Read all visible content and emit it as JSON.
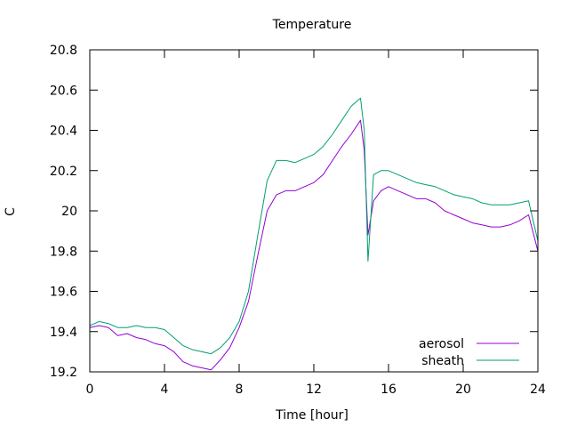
{
  "chart_data": {
    "type": "line",
    "title": "Temperature",
    "xlabel": "Time [hour]",
    "ylabel": "C",
    "xlim": [
      0,
      24
    ],
    "ylim": [
      19.2,
      20.8
    ],
    "xticks": [
      0,
      4,
      8,
      12,
      16,
      20,
      24
    ],
    "xtick_labels": [
      "0",
      "4",
      "8",
      "12",
      "16",
      "20",
      "24"
    ],
    "yticks": [
      19.2,
      19.4,
      19.6,
      19.8,
      20.0,
      20.2,
      20.4,
      20.6,
      20.8
    ],
    "ytick_labels": [
      "19.2",
      "19.4",
      "19.6",
      "19.8",
      "20",
      "20.2",
      "20.4",
      "20.6",
      "20.8"
    ],
    "grid": false,
    "legend_position": "bottom-right",
    "series": [
      {
        "name": "aerosol",
        "color": "#9400d3",
        "x": [
          0,
          0.5,
          1,
          1.5,
          2,
          2.5,
          3,
          3.5,
          4,
          4.5,
          5,
          5.5,
          6,
          6.5,
          7,
          7.5,
          8,
          8.5,
          9,
          9.5,
          10,
          10.5,
          11,
          11.5,
          12,
          12.5,
          13,
          13.5,
          14,
          14.5,
          14.7,
          14.9,
          15.2,
          15.6,
          16,
          16.5,
          17,
          17.5,
          18,
          18.5,
          19,
          19.5,
          20,
          20.5,
          21,
          21.5,
          22,
          22.5,
          23,
          23.5,
          24
        ],
        "y": [
          19.42,
          19.43,
          19.42,
          19.38,
          19.39,
          19.37,
          19.36,
          19.34,
          19.33,
          19.3,
          19.25,
          19.23,
          19.22,
          19.21,
          19.26,
          19.32,
          19.42,
          19.55,
          19.78,
          20.0,
          20.08,
          20.1,
          20.1,
          20.12,
          20.14,
          20.18,
          20.25,
          20.32,
          20.38,
          20.45,
          20.3,
          19.88,
          20.05,
          20.1,
          20.12,
          20.1,
          20.08,
          20.06,
          20.06,
          20.04,
          20.0,
          19.98,
          19.96,
          19.94,
          19.93,
          19.92,
          19.92,
          19.93,
          19.95,
          19.98,
          19.8
        ]
      },
      {
        "name": "sheath",
        "color": "#009e73",
        "x": [
          0,
          0.5,
          1,
          1.5,
          2,
          2.5,
          3,
          3.5,
          4,
          4.5,
          5,
          5.5,
          6,
          6.5,
          7,
          7.5,
          8,
          8.5,
          9,
          9.5,
          10,
          10.5,
          11,
          11.5,
          12,
          12.5,
          13,
          13.5,
          14,
          14.5,
          14.7,
          14.9,
          15.2,
          15.6,
          16,
          16.5,
          17,
          17.5,
          18,
          18.5,
          19,
          19.5,
          20,
          20.5,
          21,
          21.5,
          22,
          22.5,
          23,
          23.5,
          24
        ],
        "y": [
          19.43,
          19.45,
          19.44,
          19.42,
          19.42,
          19.43,
          19.42,
          19.42,
          19.41,
          19.37,
          19.33,
          19.31,
          19.3,
          19.29,
          19.32,
          19.37,
          19.45,
          19.6,
          19.88,
          20.15,
          20.25,
          20.25,
          20.24,
          20.26,
          20.28,
          20.32,
          20.38,
          20.45,
          20.52,
          20.56,
          20.4,
          19.75,
          20.18,
          20.2,
          20.2,
          20.18,
          20.16,
          20.14,
          20.13,
          20.12,
          20.1,
          20.08,
          20.07,
          20.06,
          20.04,
          20.03,
          20.03,
          20.03,
          20.04,
          20.05,
          19.85
        ]
      }
    ]
  }
}
